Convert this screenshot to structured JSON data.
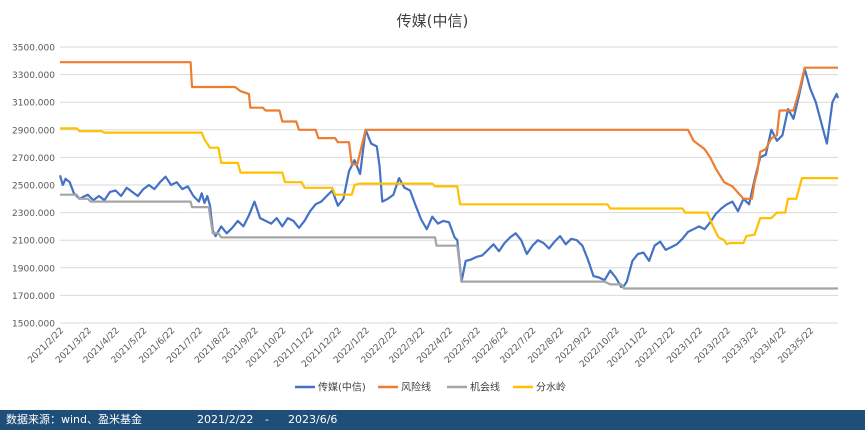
{
  "chart_data": {
    "type": "line",
    "title": "传媒(中信)",
    "xlabel": "",
    "ylabel": "",
    "ylim": [
      1500,
      3500
    ],
    "y_ticks": [
      "1500.000",
      "1700.000",
      "1900.000",
      "2100.000",
      "2300.000",
      "2500.000",
      "2700.000",
      "2900.000",
      "3100.000",
      "3300.000",
      "3500.000"
    ],
    "x_ticks": [
      "2021/2/22",
      "2021/3/22",
      "2021/4/22",
      "2021/5/22",
      "2021/6/22",
      "2021/7/22",
      "2021/8/22",
      "2021/9/22",
      "2021/10/22",
      "2021/11/22",
      "2021/12/22",
      "2022/1/22",
      "2022/2/22",
      "2022/3/22",
      "2022/4/22",
      "2022/5/22",
      "2022/6/22",
      "2022/7/22",
      "2022/8/22",
      "2022/9/22",
      "2022/10/22",
      "2022/11/22",
      "2022/12/22",
      "2023/1/22",
      "2023/2/22",
      "2023/3/22",
      "2023/4/22",
      "2023/5/22"
    ],
    "grid": "horizontal",
    "legend_position": "bottom",
    "series": [
      {
        "name": "传媒(中信)",
        "color": "#4472c4",
        "points": [
          [
            0.0,
            2570
          ],
          [
            0.1,
            2500
          ],
          [
            0.2,
            2545
          ],
          [
            0.35,
            2520
          ],
          [
            0.5,
            2440
          ],
          [
            0.7,
            2400
          ],
          [
            0.9,
            2420
          ],
          [
            1.0,
            2430
          ],
          [
            1.2,
            2390
          ],
          [
            1.4,
            2420
          ],
          [
            1.6,
            2390
          ],
          [
            1.8,
            2450
          ],
          [
            2.0,
            2460
          ],
          [
            2.2,
            2420
          ],
          [
            2.4,
            2480
          ],
          [
            2.6,
            2450
          ],
          [
            2.8,
            2420
          ],
          [
            3.0,
            2470
          ],
          [
            3.2,
            2500
          ],
          [
            3.4,
            2470
          ],
          [
            3.6,
            2520
          ],
          [
            3.8,
            2560
          ],
          [
            4.0,
            2500
          ],
          [
            4.2,
            2520
          ],
          [
            4.4,
            2470
          ],
          [
            4.6,
            2490
          ],
          [
            4.8,
            2420
          ],
          [
            5.0,
            2380
          ],
          [
            5.1,
            2440
          ],
          [
            5.2,
            2370
          ],
          [
            5.3,
            2420
          ],
          [
            5.4,
            2350
          ],
          [
            5.5,
            2170
          ],
          [
            5.6,
            2130
          ],
          [
            5.8,
            2200
          ],
          [
            6.0,
            2150
          ],
          [
            6.2,
            2190
          ],
          [
            6.4,
            2240
          ],
          [
            6.6,
            2200
          ],
          [
            6.8,
            2280
          ],
          [
            7.0,
            2380
          ],
          [
            7.2,
            2260
          ],
          [
            7.4,
            2240
          ],
          [
            7.6,
            2220
          ],
          [
            7.8,
            2260
          ],
          [
            8.0,
            2200
          ],
          [
            8.2,
            2260
          ],
          [
            8.4,
            2240
          ],
          [
            8.6,
            2190
          ],
          [
            8.8,
            2240
          ],
          [
            9.0,
            2310
          ],
          [
            9.2,
            2360
          ],
          [
            9.4,
            2380
          ],
          [
            9.6,
            2420
          ],
          [
            9.8,
            2460
          ],
          [
            10.0,
            2350
          ],
          [
            10.2,
            2400
          ],
          [
            10.4,
            2600
          ],
          [
            10.6,
            2680
          ],
          [
            10.8,
            2580
          ],
          [
            11.0,
            2900
          ],
          [
            11.2,
            2800
          ],
          [
            11.4,
            2780
          ],
          [
            11.5,
            2640
          ],
          [
            11.6,
            2380
          ],
          [
            11.8,
            2400
          ],
          [
            12.0,
            2430
          ],
          [
            12.2,
            2550
          ],
          [
            12.4,
            2480
          ],
          [
            12.6,
            2460
          ],
          [
            12.8,
            2350
          ],
          [
            13.0,
            2250
          ],
          [
            13.2,
            2180
          ],
          [
            13.4,
            2270
          ],
          [
            13.6,
            2220
          ],
          [
            13.8,
            2240
          ],
          [
            14.0,
            2230
          ],
          [
            14.2,
            2120
          ],
          [
            14.3,
            2100
          ],
          [
            14.45,
            1800
          ],
          [
            14.6,
            1950
          ],
          [
            14.8,
            1960
          ],
          [
            15.0,
            1980
          ],
          [
            15.2,
            1990
          ],
          [
            15.4,
            2030
          ],
          [
            15.6,
            2070
          ],
          [
            15.8,
            2020
          ],
          [
            16.0,
            2080
          ],
          [
            16.2,
            2120
          ],
          [
            16.4,
            2150
          ],
          [
            16.6,
            2100
          ],
          [
            16.8,
            2000
          ],
          [
            17.0,
            2060
          ],
          [
            17.2,
            2100
          ],
          [
            17.4,
            2080
          ],
          [
            17.6,
            2040
          ],
          [
            17.8,
            2090
          ],
          [
            18.0,
            2130
          ],
          [
            18.2,
            2070
          ],
          [
            18.4,
            2110
          ],
          [
            18.6,
            2100
          ],
          [
            18.8,
            2060
          ],
          [
            19.0,
            1960
          ],
          [
            19.2,
            1840
          ],
          [
            19.4,
            1830
          ],
          [
            19.6,
            1810
          ],
          [
            19.8,
            1880
          ],
          [
            20.0,
            1830
          ],
          [
            20.2,
            1760
          ],
          [
            20.3,
            1770
          ],
          [
            20.4,
            1800
          ],
          [
            20.6,
            1950
          ],
          [
            20.8,
            2000
          ],
          [
            21.0,
            2010
          ],
          [
            21.2,
            1950
          ],
          [
            21.4,
            2060
          ],
          [
            21.6,
            2090
          ],
          [
            21.8,
            2030
          ],
          [
            22.0,
            2050
          ],
          [
            22.2,
            2070
          ],
          [
            22.4,
            2110
          ],
          [
            22.6,
            2160
          ],
          [
            22.8,
            2180
          ],
          [
            23.0,
            2200
          ],
          [
            23.2,
            2180
          ],
          [
            23.4,
            2230
          ],
          [
            23.6,
            2290
          ],
          [
            23.8,
            2330
          ],
          [
            24.0,
            2360
          ],
          [
            24.2,
            2380
          ],
          [
            24.4,
            2310
          ],
          [
            24.6,
            2400
          ],
          [
            24.8,
            2360
          ],
          [
            25.0,
            2540
          ],
          [
            25.2,
            2700
          ],
          [
            25.4,
            2720
          ],
          [
            25.6,
            2900
          ],
          [
            25.8,
            2820
          ],
          [
            26.0,
            2860
          ],
          [
            26.2,
            3050
          ],
          [
            26.4,
            2980
          ],
          [
            26.6,
            3150
          ],
          [
            26.8,
            3340
          ],
          [
            27.0,
            3200
          ],
          [
            27.2,
            3100
          ],
          [
            27.4,
            2950
          ],
          [
            27.6,
            2800
          ],
          [
            27.8,
            3100
          ],
          [
            27.95,
            3160
          ],
          [
            28.0,
            3130
          ]
        ]
      },
      {
        "name": "风险线",
        "color": "#ed7d31",
        "points": [
          [
            0.0,
            3390
          ],
          [
            4.7,
            3390
          ],
          [
            4.75,
            3210
          ],
          [
            6.3,
            3210
          ],
          [
            6.5,
            3180
          ],
          [
            6.8,
            3160
          ],
          [
            6.85,
            3060
          ],
          [
            7.3,
            3060
          ],
          [
            7.4,
            3040
          ],
          [
            7.9,
            3040
          ],
          [
            8.0,
            2960
          ],
          [
            8.5,
            2960
          ],
          [
            8.6,
            2900
          ],
          [
            9.2,
            2900
          ],
          [
            9.3,
            2840
          ],
          [
            9.9,
            2840
          ],
          [
            10.0,
            2810
          ],
          [
            10.4,
            2810
          ],
          [
            10.5,
            2650
          ],
          [
            10.7,
            2650
          ],
          [
            11.0,
            2900
          ],
          [
            22.6,
            2900
          ],
          [
            22.8,
            2820
          ],
          [
            23.2,
            2760
          ],
          [
            23.4,
            2700
          ],
          [
            23.6,
            2620
          ],
          [
            23.9,
            2520
          ],
          [
            24.2,
            2490
          ],
          [
            24.6,
            2400
          ],
          [
            24.9,
            2400
          ],
          [
            25.0,
            2520
          ],
          [
            25.1,
            2600
          ],
          [
            25.2,
            2740
          ],
          [
            25.4,
            2760
          ],
          [
            25.6,
            2840
          ],
          [
            25.8,
            2860
          ],
          [
            25.9,
            3040
          ],
          [
            26.4,
            3040
          ],
          [
            26.6,
            3180
          ],
          [
            26.8,
            3350
          ],
          [
            28.0,
            3350
          ]
        ]
      },
      {
        "name": "机会线",
        "color": "#a5a5a5",
        "points": [
          [
            0.0,
            2430
          ],
          [
            0.6,
            2430
          ],
          [
            0.7,
            2400
          ],
          [
            1.0,
            2400
          ],
          [
            1.1,
            2380
          ],
          [
            4.7,
            2380
          ],
          [
            4.75,
            2340
          ],
          [
            5.35,
            2340
          ],
          [
            5.5,
            2150
          ],
          [
            5.7,
            2150
          ],
          [
            5.8,
            2120
          ],
          [
            13.5,
            2120
          ],
          [
            13.55,
            2060
          ],
          [
            14.3,
            2060
          ],
          [
            14.45,
            1800
          ],
          [
            19.6,
            1800
          ],
          [
            19.8,
            1780
          ],
          [
            20.2,
            1780
          ],
          [
            20.3,
            1750
          ],
          [
            28.0,
            1750
          ]
        ]
      },
      {
        "name": "分水岭",
        "color": "#ffc000",
        "points": [
          [
            0.0,
            2910
          ],
          [
            0.6,
            2910
          ],
          [
            0.7,
            2890
          ],
          [
            1.5,
            2890
          ],
          [
            1.6,
            2880
          ],
          [
            5.1,
            2880
          ],
          [
            5.2,
            2830
          ],
          [
            5.4,
            2770
          ],
          [
            5.7,
            2770
          ],
          [
            5.8,
            2660
          ],
          [
            6.4,
            2660
          ],
          [
            6.5,
            2590
          ],
          [
            8.0,
            2590
          ],
          [
            8.1,
            2520
          ],
          [
            8.7,
            2520
          ],
          [
            8.8,
            2480
          ],
          [
            9.8,
            2480
          ],
          [
            9.9,
            2430
          ],
          [
            10.5,
            2430
          ],
          [
            10.6,
            2500
          ],
          [
            10.8,
            2510
          ],
          [
            13.4,
            2510
          ],
          [
            13.5,
            2490
          ],
          [
            14.3,
            2490
          ],
          [
            14.4,
            2360
          ],
          [
            19.7,
            2360
          ],
          [
            19.8,
            2330
          ],
          [
            22.4,
            2330
          ],
          [
            22.5,
            2300
          ],
          [
            23.3,
            2300
          ],
          [
            23.5,
            2200
          ],
          [
            23.7,
            2120
          ],
          [
            23.9,
            2100
          ],
          [
            24.0,
            2070
          ],
          [
            24.1,
            2080
          ],
          [
            24.6,
            2080
          ],
          [
            24.7,
            2130
          ],
          [
            25.0,
            2140
          ],
          [
            25.2,
            2260
          ],
          [
            25.6,
            2260
          ],
          [
            25.8,
            2300
          ],
          [
            26.1,
            2300
          ],
          [
            26.2,
            2400
          ],
          [
            26.5,
            2400
          ],
          [
            26.7,
            2550
          ],
          [
            28.0,
            2550
          ]
        ]
      }
    ]
  },
  "footer": {
    "source": "数据来源：wind、盈米基金",
    "date_start": "2021/2/22",
    "dash": "-",
    "date_end": "2023/6/6"
  }
}
